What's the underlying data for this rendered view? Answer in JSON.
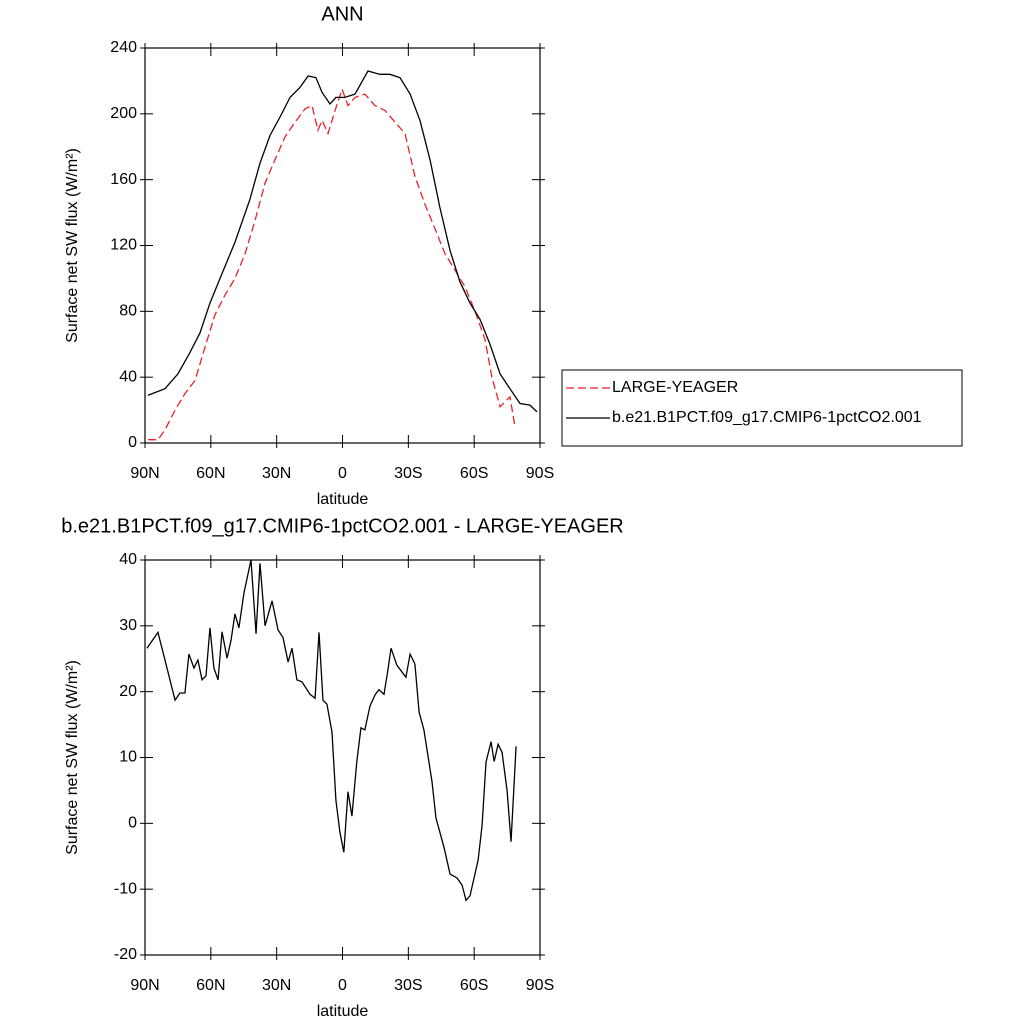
{
  "chart_data": [
    {
      "type": "line",
      "title": "ANN",
      "xlabel": "latitude",
      "ylabel": "Surface net SW flux (W/m²)",
      "xlim": [
        90,
        -90
      ],
      "xticks": [
        {
          "value": 90,
          "label": "90N"
        },
        {
          "value": 60,
          "label": "60N"
        },
        {
          "value": 30,
          "label": "30N"
        },
        0,
        {
          "value": -30,
          "label": "30S"
        },
        {
          "value": -60,
          "label": "60S"
        },
        {
          "value": -90,
          "label": "90S"
        }
      ],
      "ylim": [
        0,
        240
      ],
      "yticks": [
        0,
        40,
        80,
        120,
        160,
        200,
        240
      ],
      "legend": "outside-right",
      "series": [
        {
          "name": "LARGE-YEAGER",
          "color": "#e8232a",
          "dashed": true,
          "x": [
            88.6,
            84.1,
            80.9,
            76.3,
            71.8,
            67.2,
            62.7,
            58.1,
            53.5,
            49.0,
            44.4,
            39.9,
            35.3,
            30.8,
            26.2,
            21.6,
            17.1,
            13.9,
            11.2,
            9.3,
            6.6,
            3.4,
            0.2,
            -2.5,
            -5.7,
            -10.2,
            -14.8,
            -19.4,
            -23.9,
            -28.5,
            -33.0,
            -37.6,
            -42.2,
            -46.7,
            -51.3,
            -55.8,
            -60.4,
            -64.9,
            -68.1,
            -71.8,
            -76.3,
            -78.6
          ],
          "values": [
            2,
            2,
            8,
            20,
            30,
            38,
            58,
            78,
            90,
            100,
            115,
            135,
            158,
            172,
            186,
            195,
            203,
            205,
            190,
            196,
            188,
            202,
            215,
            205,
            210,
            212,
            205,
            202,
            195,
            188,
            162,
            145,
            130,
            115,
            105,
            95,
            80,
            63,
            40,
            22,
            28,
            10
          ]
        },
        {
          "name": "b.e21.B1PCT.f09_g17.CMIP6-1pctCO2.001",
          "color": "#000000",
          "dashed": false,
          "x": [
            88.6,
            80.9,
            75.0,
            69.5,
            64.9,
            60.4,
            55.8,
            49.0,
            42.2,
            37.6,
            33.0,
            28.5,
            23.9,
            19.4,
            15.7,
            12.1,
            9.3,
            5.7,
            3.0,
            -1.1,
            -5.7,
            -11.6,
            -17.1,
            -21.6,
            -26.2,
            -30.8,
            -35.3,
            -39.9,
            -44.4,
            -49.0,
            -53.5,
            -58.1,
            -62.7,
            -67.2,
            -71.8,
            -76.3,
            -80.9,
            -85.4,
            -88.6
          ],
          "values": [
            29,
            33,
            42,
            55,
            67,
            85,
            100,
            122,
            148,
            170,
            187,
            198,
            210,
            216,
            223,
            222,
            213,
            206,
            210,
            210,
            212,
            226,
            224,
            224,
            222,
            212,
            196,
            172,
            143,
            117,
            98,
            85,
            75,
            60,
            42,
            33,
            24,
            23,
            19
          ]
        }
      ]
    },
    {
      "type": "line",
      "title": "b.e21.B1PCT.f09_g17.CMIP6-1pctCO2.001 - LARGE-YEAGER",
      "xlabel": "latitude",
      "ylabel": "Surface net SW flux (W/m²)",
      "xlim": [
        90,
        -90
      ],
      "xticks": [
        {
          "value": 90,
          "label": "90N"
        },
        {
          "value": 60,
          "label": "60N"
        },
        {
          "value": 30,
          "label": "30N"
        },
        0,
        {
          "value": -30,
          "label": "30S"
        },
        {
          "value": -60,
          "label": "60S"
        },
        {
          "value": -90,
          "label": "90S"
        }
      ],
      "ylim": [
        -20,
        40
      ],
      "yticks": [
        -20,
        -10,
        0,
        10,
        20,
        30,
        40
      ],
      "series": [
        {
          "color": "#000000",
          "dashed": false,
          "x": [
            89.1,
            84.1,
            80.9,
            76.3,
            74.1,
            71.8,
            70.0,
            67.7,
            65.9,
            64.0,
            62.2,
            60.4,
            58.6,
            56.7,
            54.9,
            52.6,
            50.8,
            49.0,
            47.2,
            44.9,
            41.7,
            39.4,
            37.6,
            35.3,
            32.1,
            29.4,
            27.1,
            24.8,
            23.0,
            20.8,
            18.5,
            14.8,
            12.5,
            10.7,
            8.9,
            7.1,
            4.8,
            3.0,
            1.2,
            -0.6,
            -2.5,
            -4.3,
            -6.5,
            -8.4,
            -10.2,
            -12.5,
            -14.8,
            -16.6,
            -18.9,
            -20.7,
            -22.1,
            -24.8,
            -27.1,
            -28.9,
            -30.8,
            -33.0,
            -34.9,
            -37.1,
            -40.8,
            -42.6,
            -46.3,
            -49.0,
            -52.2,
            -54.5,
            -56.3,
            -58.1,
            -61.8,
            -63.6,
            -65.4,
            -67.7,
            -69.1,
            -70.9,
            -72.7,
            -75.0,
            -76.8,
            -79.1
          ],
          "values": [
            26.6,
            29,
            24.8,
            18.7,
            19.8,
            19.8,
            25.7,
            23.6,
            24.8,
            21.8,
            22.4,
            29.7,
            23.6,
            21.8,
            29.1,
            25.1,
            27.8,
            31.8,
            29.7,
            35,
            40,
            28.8,
            39.5,
            30,
            33.8,
            29.4,
            28.2,
            24.5,
            26.6,
            21.8,
            21.5,
            19.6,
            19,
            29,
            18.7,
            18.1,
            13.9,
            3.5,
            -1.3,
            -4.4,
            4.8,
            1.1,
            9.3,
            14.5,
            14.2,
            17.8,
            19.5,
            20.3,
            19.6,
            23.3,
            26.6,
            24,
            23,
            22.2,
            25.7,
            24.2,
            16.9,
            14.2,
            6.3,
            0.8,
            -3.7,
            -7.7,
            -8.3,
            -9.4,
            -11.7,
            -11,
            -5.6,
            -0.3,
            9.3,
            12.4,
            9.4,
            12,
            10.8,
            5,
            -2.8,
            11.7
          ]
        }
      ]
    }
  ]
}
